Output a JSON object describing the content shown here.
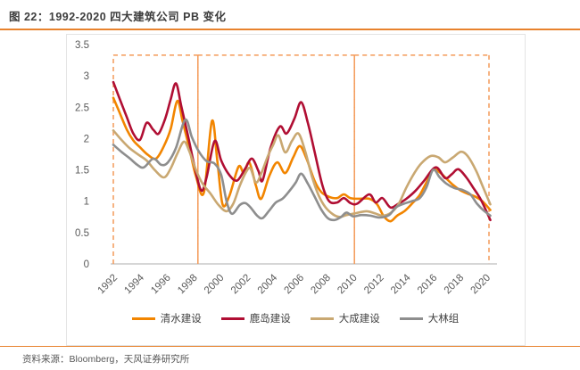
{
  "header": {
    "title": "图 22：1992-2020 四大建筑公司 PB 变化"
  },
  "footer": {
    "source": "资料来源：Bloomberg，天风证券研究所"
  },
  "colors": {
    "accent_orange": "#E8822D",
    "highlight_dash": "#F49A58",
    "axis_line": "#D6D6D6",
    "tick_text": "#595959",
    "frame_border": "#E4E4E4"
  },
  "chart_data": {
    "type": "line",
    "title": "图 22：1992-2020 四大建筑公司 PB 变化",
    "xlabel": "",
    "ylabel": "",
    "xlim": [
      1992,
      2020.5
    ],
    "ylim": [
      0,
      3.5
    ],
    "x_ticks": [
      1992,
      1994,
      1996,
      1998,
      2000,
      2002,
      2004,
      2006,
      2008,
      2010,
      2012,
      2014,
      2016,
      2018,
      2020
    ],
    "y_ticks": [
      0,
      0.5,
      1,
      1.5,
      2,
      2.5,
      3,
      3.5
    ],
    "grid": false,
    "legend_position": "bottom",
    "highlight_boxes": [
      {
        "x0": 1992.0,
        "x1": 1998.35,
        "y0": 0,
        "y1": 3.33
      },
      {
        "x0": 1998.35,
        "x1": 2010.1,
        "y0": 0,
        "y1": 3.33
      },
      {
        "x0": 2010.1,
        "x1": 2020.2,
        "y0": 0,
        "y1": 3.33
      }
    ],
    "series": [
      {
        "name": "清水建设",
        "color": "#F28500",
        "points": [
          [
            1992.0,
            2.65
          ],
          [
            1992.4,
            2.45
          ],
          [
            1993.0,
            2.15
          ],
          [
            1993.5,
            1.97
          ],
          [
            1994.0,
            1.86
          ],
          [
            1994.6,
            1.74
          ],
          [
            1995.2,
            1.68
          ],
          [
            1995.8,
            1.88
          ],
          [
            1996.3,
            2.15
          ],
          [
            1996.8,
            2.6
          ],
          [
            1997.2,
            2.28
          ],
          [
            1997.7,
            1.85
          ],
          [
            1998.2,
            1.4
          ],
          [
            1998.8,
            1.14
          ],
          [
            1999.4,
            2.28
          ],
          [
            1999.8,
            1.65
          ],
          [
            2000.2,
            0.95
          ],
          [
            2000.7,
            1.08
          ],
          [
            2001.4,
            1.55
          ],
          [
            2001.8,
            1.45
          ],
          [
            2002.2,
            1.62
          ],
          [
            2002.7,
            1.25
          ],
          [
            2003.1,
            1.04
          ],
          [
            2003.7,
            1.4
          ],
          [
            2004.3,
            1.62
          ],
          [
            2004.9,
            1.45
          ],
          [
            2005.5,
            1.7
          ],
          [
            2006.0,
            1.88
          ],
          [
            2006.5,
            1.68
          ],
          [
            2007.1,
            1.33
          ],
          [
            2007.6,
            1.15
          ],
          [
            2008.2,
            1.07
          ],
          [
            2008.8,
            1.05
          ],
          [
            2009.3,
            1.11
          ],
          [
            2009.8,
            1.05
          ],
          [
            2010.5,
            1.04
          ],
          [
            2011.2,
            1.04
          ],
          [
            2011.8,
            0.95
          ],
          [
            2012.3,
            0.76
          ],
          [
            2012.8,
            0.68
          ],
          [
            2013.3,
            0.77
          ],
          [
            2013.9,
            0.85
          ],
          [
            2014.5,
            0.98
          ],
          [
            2015.0,
            1.1
          ],
          [
            2015.5,
            1.3
          ],
          [
            2016.0,
            1.5
          ],
          [
            2016.5,
            1.46
          ],
          [
            2017.0,
            1.36
          ],
          [
            2017.5,
            1.26
          ],
          [
            2018.0,
            1.18
          ],
          [
            2018.6,
            1.12
          ],
          [
            2019.2,
            1.07
          ],
          [
            2019.7,
            1.0
          ],
          [
            2020.3,
            0.86
          ]
        ]
      },
      {
        "name": "鹿岛建设",
        "color": "#B00E33",
        "points": [
          [
            1992.0,
            2.9
          ],
          [
            1992.5,
            2.62
          ],
          [
            1993.0,
            2.35
          ],
          [
            1993.5,
            2.08
          ],
          [
            1994.0,
            1.98
          ],
          [
            1994.5,
            2.25
          ],
          [
            1995.0,
            2.14
          ],
          [
            1995.4,
            2.08
          ],
          [
            1995.9,
            2.32
          ],
          [
            1996.3,
            2.62
          ],
          [
            1996.7,
            2.88
          ],
          [
            1997.1,
            2.52
          ],
          [
            1997.6,
            2.05
          ],
          [
            1998.1,
            1.55
          ],
          [
            1998.6,
            1.17
          ],
          [
            1999.0,
            1.38
          ],
          [
            1999.6,
            1.96
          ],
          [
            2000.1,
            1.65
          ],
          [
            2000.7,
            1.42
          ],
          [
            2001.3,
            1.33
          ],
          [
            2001.9,
            1.52
          ],
          [
            2002.4,
            1.68
          ],
          [
            2002.9,
            1.48
          ],
          [
            2003.2,
            1.33
          ],
          [
            2003.8,
            1.85
          ],
          [
            2004.5,
            2.19
          ],
          [
            2005.0,
            2.08
          ],
          [
            2005.6,
            2.32
          ],
          [
            2006.1,
            2.58
          ],
          [
            2006.6,
            2.25
          ],
          [
            2007.1,
            1.8
          ],
          [
            2007.7,
            1.25
          ],
          [
            2008.2,
            1.0
          ],
          [
            2008.8,
            0.98
          ],
          [
            2009.3,
            1.05
          ],
          [
            2009.8,
            0.97
          ],
          [
            2010.3,
            0.96
          ],
          [
            2011.2,
            1.11
          ],
          [
            2011.7,
            0.98
          ],
          [
            2012.2,
            1.05
          ],
          [
            2012.8,
            0.9
          ],
          [
            2013.4,
            0.96
          ],
          [
            2014.0,
            1.04
          ],
          [
            2014.7,
            1.17
          ],
          [
            2015.3,
            1.32
          ],
          [
            2016.2,
            1.54
          ],
          [
            2016.9,
            1.37
          ],
          [
            2017.4,
            1.43
          ],
          [
            2017.9,
            1.51
          ],
          [
            2018.5,
            1.38
          ],
          [
            2019.0,
            1.22
          ],
          [
            2019.6,
            1.02
          ],
          [
            2020.3,
            0.7
          ]
        ]
      },
      {
        "name": "大成建设",
        "color": "#C9A872",
        "points": [
          [
            1992.0,
            2.13
          ],
          [
            1992.6,
            1.98
          ],
          [
            1993.2,
            1.85
          ],
          [
            1993.9,
            1.74
          ],
          [
            1994.5,
            1.65
          ],
          [
            1995.1,
            1.5
          ],
          [
            1995.8,
            1.38
          ],
          [
            1996.3,
            1.52
          ],
          [
            1996.8,
            1.76
          ],
          [
            1997.3,
            1.95
          ],
          [
            1997.7,
            1.8
          ],
          [
            1998.2,
            1.5
          ],
          [
            1998.7,
            1.28
          ],
          [
            1999.3,
            1.12
          ],
          [
            1999.9,
            0.94
          ],
          [
            2000.5,
            0.84
          ],
          [
            2001.0,
            0.96
          ],
          [
            2001.5,
            1.25
          ],
          [
            2002.0,
            1.48
          ],
          [
            2002.3,
            1.52
          ],
          [
            2002.7,
            1.3
          ],
          [
            2003.1,
            1.44
          ],
          [
            2003.6,
            1.72
          ],
          [
            2004.0,
            1.9
          ],
          [
            2004.4,
            2.05
          ],
          [
            2004.9,
            1.78
          ],
          [
            2005.4,
            1.96
          ],
          [
            2005.9,
            2.08
          ],
          [
            2006.4,
            1.8
          ],
          [
            2006.9,
            1.4
          ],
          [
            2007.4,
            1.1
          ],
          [
            2007.9,
            0.91
          ],
          [
            2008.5,
            0.79
          ],
          [
            2009.0,
            0.75
          ],
          [
            2009.5,
            0.78
          ],
          [
            2010.2,
            0.81
          ],
          [
            2011.0,
            0.84
          ],
          [
            2011.6,
            0.81
          ],
          [
            2012.2,
            0.77
          ],
          [
            2012.8,
            0.81
          ],
          [
            2013.4,
            0.95
          ],
          [
            2014.0,
            1.22
          ],
          [
            2014.6,
            1.45
          ],
          [
            2015.1,
            1.6
          ],
          [
            2015.8,
            1.72
          ],
          [
            2016.4,
            1.7
          ],
          [
            2016.9,
            1.62
          ],
          [
            2017.5,
            1.7
          ],
          [
            2018.1,
            1.79
          ],
          [
            2018.6,
            1.72
          ],
          [
            2019.2,
            1.5
          ],
          [
            2019.7,
            1.25
          ],
          [
            2020.3,
            0.95
          ]
        ]
      },
      {
        "name": "大林组",
        "color": "#8E8E8E",
        "points": [
          [
            1992.0,
            1.9
          ],
          [
            1992.6,
            1.79
          ],
          [
            1993.2,
            1.69
          ],
          [
            1993.8,
            1.58
          ],
          [
            1994.3,
            1.54
          ],
          [
            1995.0,
            1.68
          ],
          [
            1995.6,
            1.58
          ],
          [
            1996.1,
            1.62
          ],
          [
            1996.7,
            1.85
          ],
          [
            1997.4,
            2.3
          ],
          [
            1997.9,
            2.02
          ],
          [
            1998.4,
            1.8
          ],
          [
            1999.0,
            1.64
          ],
          [
            1999.6,
            1.6
          ],
          [
            2000.1,
            1.42
          ],
          [
            2000.5,
            1.0
          ],
          [
            2000.9,
            0.8
          ],
          [
            2001.5,
            0.94
          ],
          [
            2001.9,
            0.97
          ],
          [
            2002.3,
            0.9
          ],
          [
            2002.8,
            0.77
          ],
          [
            2003.2,
            0.73
          ],
          [
            2003.7,
            0.85
          ],
          [
            2004.2,
            0.98
          ],
          [
            2004.7,
            1.04
          ],
          [
            2005.2,
            1.16
          ],
          [
            2005.7,
            1.3
          ],
          [
            2006.1,
            1.44
          ],
          [
            2006.6,
            1.28
          ],
          [
            2007.1,
            1.08
          ],
          [
            2007.6,
            0.87
          ],
          [
            2008.1,
            0.73
          ],
          [
            2008.6,
            0.7
          ],
          [
            2009.1,
            0.75
          ],
          [
            2009.5,
            0.82
          ],
          [
            2010.0,
            0.76
          ],
          [
            2010.6,
            0.78
          ],
          [
            2011.3,
            0.77
          ],
          [
            2012.0,
            0.74
          ],
          [
            2012.7,
            0.78
          ],
          [
            2013.2,
            0.9
          ],
          [
            2013.8,
            0.96
          ],
          [
            2014.4,
            1.0
          ],
          [
            2015.0,
            1.05
          ],
          [
            2015.5,
            1.22
          ],
          [
            2016.0,
            1.5
          ],
          [
            2016.5,
            1.38
          ],
          [
            2017.0,
            1.28
          ],
          [
            2017.6,
            1.21
          ],
          [
            2018.2,
            1.18
          ],
          [
            2018.8,
            1.11
          ],
          [
            2019.3,
            0.96
          ],
          [
            2019.8,
            0.85
          ],
          [
            2020.3,
            0.77
          ]
        ]
      }
    ]
  }
}
